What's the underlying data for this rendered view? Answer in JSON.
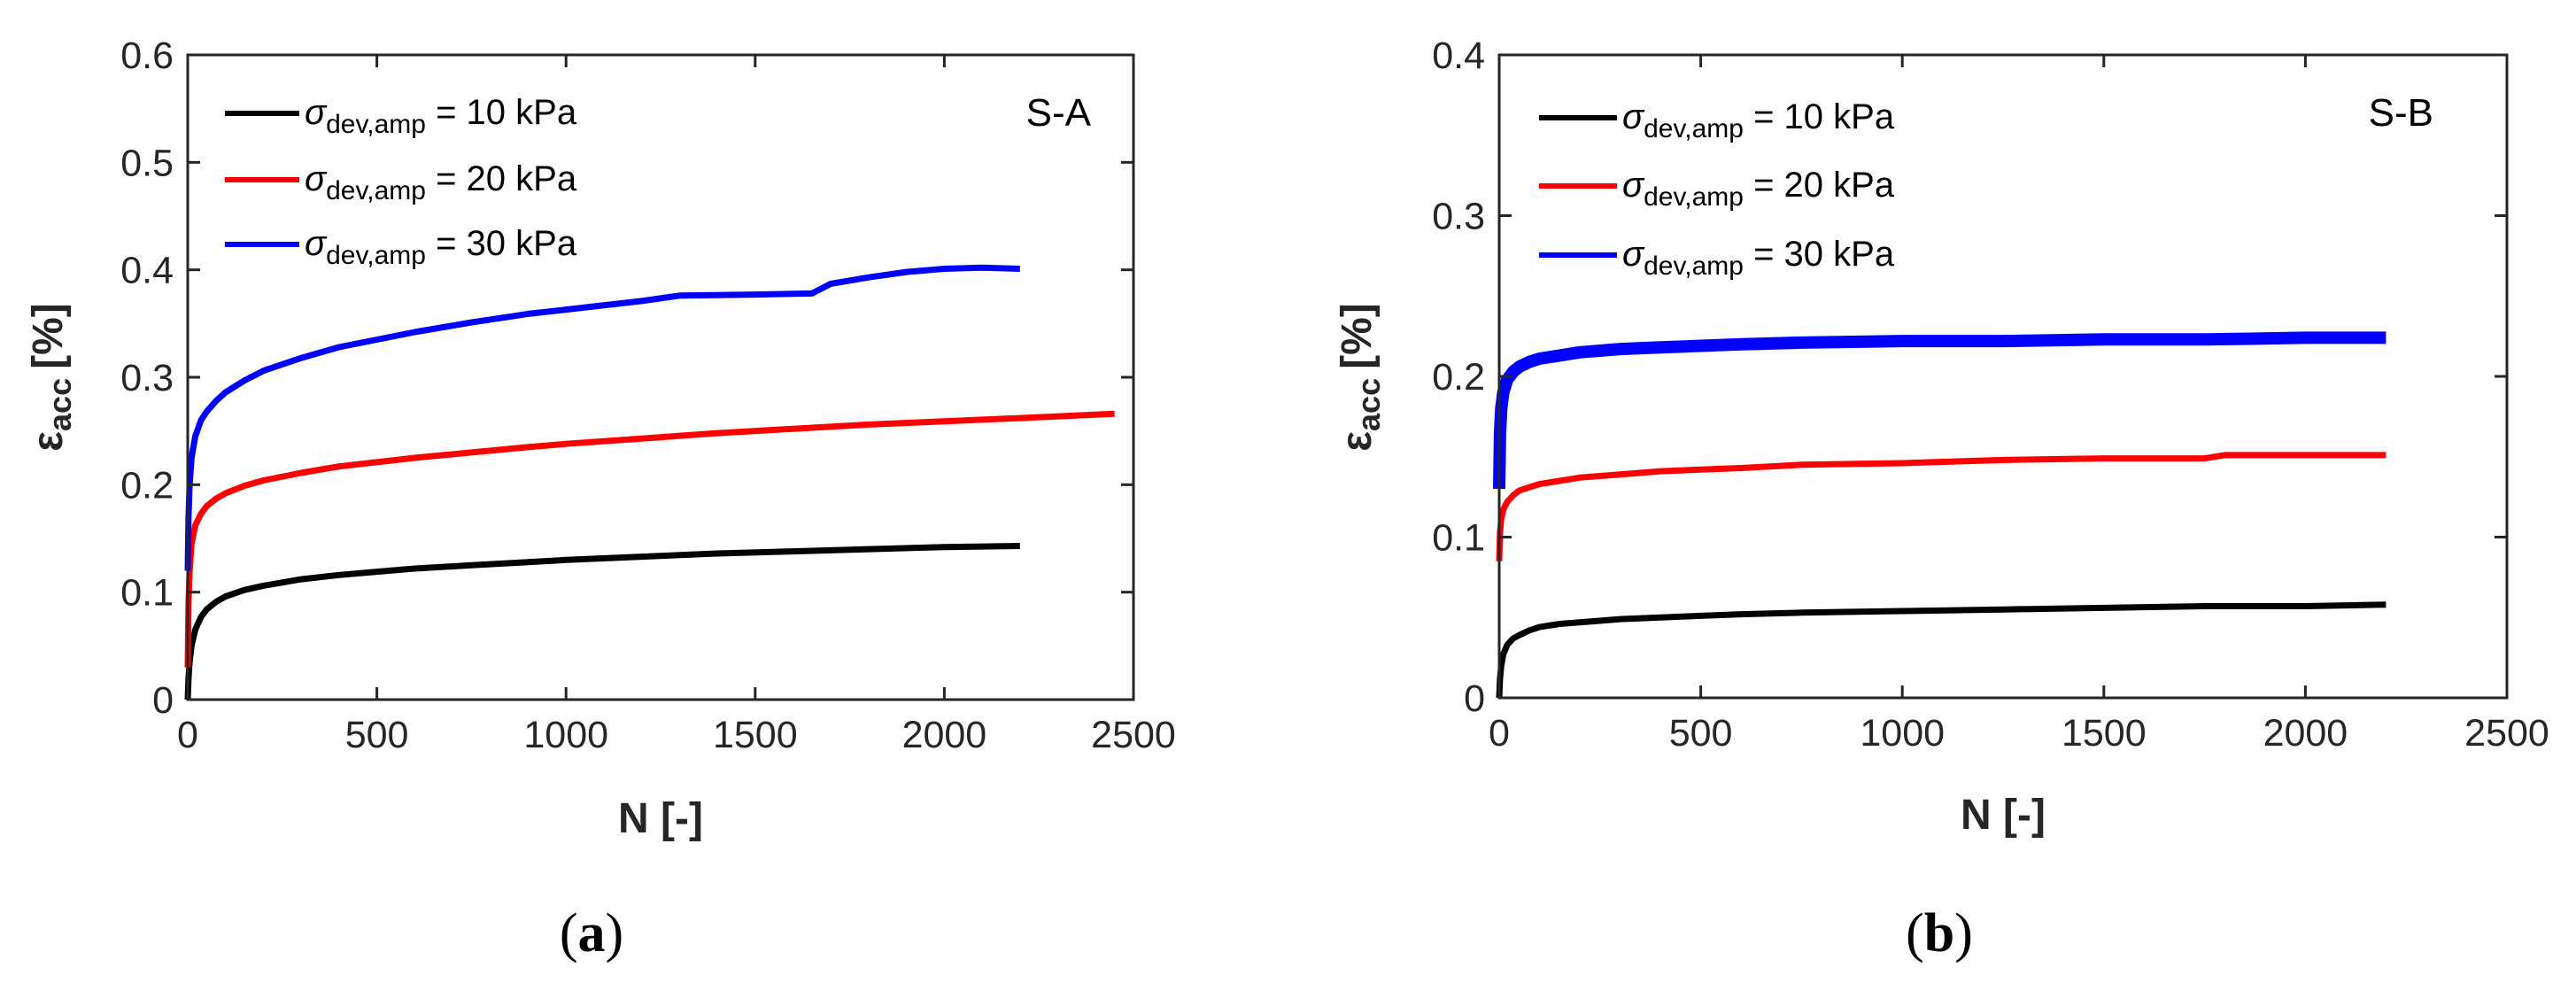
{
  "chart_data": [
    {
      "type": "line",
      "panel_tag": "S-A",
      "caption_letter": "a",
      "xlabel": "N [-]",
      "ylabel_main": "ε",
      "ylabel_sub": "acc",
      "ylabel_unit": "[%]",
      "xlim": [
        0,
        2500
      ],
      "ylim": [
        0,
        0.6
      ],
      "xticks": [
        0,
        500,
        1000,
        1500,
        2000,
        2500
      ],
      "xtick_labels": [
        "0",
        "500",
        "1000",
        "1500",
        "2000",
        "2500"
      ],
      "yticks": [
        0,
        0.1,
        0.2,
        0.3,
        0.4,
        0.5,
        0.6
      ],
      "ytick_labels": [
        "0",
        "0.1",
        "0.2",
        "0.3",
        "0.4",
        "0.5",
        "0.6"
      ],
      "grid": false,
      "legend_position": "top-left",
      "series": [
        {
          "name": "σdev,amp = 10 kPa",
          "legend_symbol": "σ",
          "legend_sub": "dev,amp",
          "legend_rest": " = 10 kPa",
          "color": "#000000",
          "x": [
            0,
            2,
            5,
            10,
            20,
            35,
            50,
            75,
            100,
            150,
            200,
            300,
            400,
            500,
            600,
            750,
            900,
            1000,
            1200,
            1400,
            1600,
            1800,
            2000,
            2200
          ],
          "y": [
            0.0,
            0.02,
            0.035,
            0.05,
            0.065,
            0.077,
            0.084,
            0.091,
            0.096,
            0.102,
            0.106,
            0.112,
            0.116,
            0.119,
            0.122,
            0.125,
            0.128,
            0.13,
            0.133,
            0.136,
            0.138,
            0.14,
            0.142,
            0.143
          ]
        },
        {
          "name": "σdev,amp = 20 kPa",
          "legend_symbol": "σ",
          "legend_sub": "dev,amp",
          "legend_rest": " = 20 kPa",
          "color": "#ff0000",
          "x": [
            0,
            2,
            5,
            10,
            20,
            35,
            50,
            75,
            100,
            150,
            200,
            300,
            400,
            500,
            600,
            750,
            900,
            1000,
            1200,
            1400,
            1600,
            1800,
            2000,
            2200,
            2450
          ],
          "y": [
            0.03,
            0.09,
            0.12,
            0.145,
            0.162,
            0.173,
            0.18,
            0.187,
            0.192,
            0.199,
            0.204,
            0.211,
            0.217,
            0.221,
            0.225,
            0.23,
            0.235,
            0.238,
            0.243,
            0.248,
            0.252,
            0.256,
            0.259,
            0.262,
            0.266
          ]
        },
        {
          "name": "σdev,amp = 30 kPa",
          "legend_symbol": "σ",
          "legend_sub": "dev,amp",
          "legend_rest": " = 30 kPa",
          "color": "#0000ff",
          "x": [
            0,
            2,
            5,
            10,
            20,
            35,
            50,
            75,
            100,
            150,
            200,
            300,
            400,
            500,
            600,
            750,
            900,
            1000,
            1200,
            1300,
            1500,
            1650,
            1700,
            1800,
            1900,
            2000,
            2100,
            2200
          ],
          "y": [
            0.12,
            0.17,
            0.2,
            0.225,
            0.245,
            0.26,
            0.268,
            0.278,
            0.286,
            0.297,
            0.306,
            0.318,
            0.328,
            0.335,
            0.342,
            0.351,
            0.359,
            0.363,
            0.371,
            0.376,
            0.377,
            0.378,
            0.387,
            0.393,
            0.398,
            0.401,
            0.402,
            0.401
          ]
        }
      ]
    },
    {
      "type": "line",
      "panel_tag": "S-B",
      "caption_letter": "b",
      "xlabel": "N [-]",
      "ylabel_main": "ε",
      "ylabel_sub": "acc",
      "ylabel_unit": "[%]",
      "xlim": [
        0,
        2500
      ],
      "ylim": [
        0,
        0.4
      ],
      "xticks": [
        0,
        500,
        1000,
        1500,
        2000,
        2500
      ],
      "xtick_labels": [
        "0",
        "500",
        "1000",
        "1500",
        "2000",
        "2500"
      ],
      "yticks": [
        0,
        0.1,
        0.2,
        0.3,
        0.4
      ],
      "ytick_labels": [
        "0",
        "0.1",
        "0.2",
        "0.3",
        "0.4"
      ],
      "grid": false,
      "legend_position": "top-left",
      "series": [
        {
          "name": "σdev,amp = 10 kPa",
          "legend_symbol": "σ",
          "legend_sub": "dev,amp",
          "legend_rest": " = 10 kPa",
          "color": "#000000",
          "x": [
            0,
            2,
            5,
            10,
            20,
            35,
            50,
            75,
            100,
            150,
            200,
            300,
            400,
            500,
            600,
            750,
            1000,
            1250,
            1500,
            1750,
            2000,
            2200
          ],
          "y": [
            0.0,
            0.012,
            0.02,
            0.027,
            0.033,
            0.037,
            0.039,
            0.042,
            0.044,
            0.046,
            0.047,
            0.049,
            0.05,
            0.051,
            0.052,
            0.053,
            0.054,
            0.055,
            0.056,
            0.057,
            0.057,
            0.058
          ]
        },
        {
          "name": "σdev,amp = 20 kPa",
          "legend_symbol": "σ",
          "legend_sub": "dev,amp",
          "legend_rest": " = 20 kPa",
          "color": "#ff0000",
          "x": [
            0,
            2,
            5,
            10,
            20,
            35,
            50,
            75,
            100,
            150,
            200,
            300,
            400,
            500,
            600,
            750,
            1000,
            1250,
            1500,
            1750,
            1800,
            2000,
            2200
          ],
          "y": [
            0.085,
            0.103,
            0.111,
            0.117,
            0.122,
            0.126,
            0.129,
            0.131,
            0.133,
            0.135,
            0.137,
            0.139,
            0.141,
            0.142,
            0.143,
            0.145,
            0.146,
            0.148,
            0.149,
            0.149,
            0.151,
            0.151,
            0.151
          ]
        },
        {
          "name": "σdev,amp = 30 kPa",
          "legend_symbol": "σ",
          "legend_sub": "dev,amp",
          "legend_rest": " = 30 kPa",
          "color": "#0000ff",
          "x": [
            0,
            2,
            5,
            10,
            20,
            35,
            50,
            75,
            100,
            150,
            200,
            300,
            400,
            500,
            600,
            750,
            1000,
            1250,
            1500,
            1750,
            2000,
            2200
          ],
          "y": [
            0.13,
            0.165,
            0.18,
            0.19,
            0.198,
            0.203,
            0.206,
            0.209,
            0.211,
            0.213,
            0.215,
            0.217,
            0.218,
            0.219,
            0.22,
            0.221,
            0.222,
            0.222,
            0.223,
            0.223,
            0.224,
            0.224
          ]
        }
      ]
    }
  ]
}
